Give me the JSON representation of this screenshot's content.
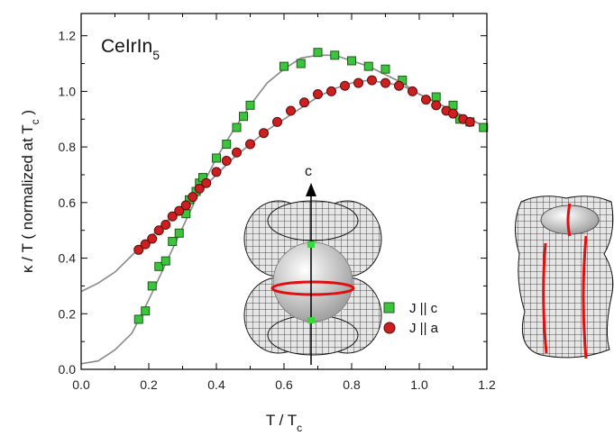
{
  "chart_data": {
    "type": "scatter",
    "title": "CeIrIn",
    "title_subscript": "5",
    "xlabel": "T / T",
    "xlabel_subscript": "c",
    "ylabel": "κ / T ( normalized at T",
    "ylabel_subscript": "c",
    "ylabel_close": " )",
    "xlim": [
      0.0,
      1.2
    ],
    "ylim": [
      0.0,
      1.28
    ],
    "x_ticks": [
      0.0,
      0.2,
      0.4,
      0.6,
      0.8,
      1.0,
      1.2
    ],
    "x_tick_labels": [
      "0.0",
      "0.2",
      "0.4",
      "0.6",
      "0.8",
      "1.0",
      "1.2"
    ],
    "y_ticks": [
      0.0,
      0.2,
      0.4,
      0.6,
      0.8,
      1.0,
      1.2
    ],
    "y_tick_labels": [
      "0.0",
      "0.2",
      "0.4",
      "0.6",
      "0.8",
      "1.0",
      "1.2"
    ],
    "grid": false,
    "legend_position": "lower-right",
    "series": [
      {
        "name": "J || c",
        "marker": "square",
        "color": "#3cc43c",
        "points": [
          [
            0.17,
            0.18
          ],
          [
            0.19,
            0.21
          ],
          [
            0.21,
            0.3
          ],
          [
            0.23,
            0.37
          ],
          [
            0.25,
            0.39
          ],
          [
            0.27,
            0.46
          ],
          [
            0.29,
            0.49
          ],
          [
            0.31,
            0.56
          ],
          [
            0.32,
            0.61
          ],
          [
            0.34,
            0.64
          ],
          [
            0.35,
            0.67
          ],
          [
            0.36,
            0.69
          ],
          [
            0.4,
            0.76
          ],
          [
            0.43,
            0.81
          ],
          [
            0.46,
            0.87
          ],
          [
            0.48,
            0.91
          ],
          [
            0.5,
            0.95
          ],
          [
            0.6,
            1.09
          ],
          [
            0.65,
            1.1
          ],
          [
            0.7,
            1.14
          ],
          [
            0.75,
            1.13
          ],
          [
            0.8,
            1.11
          ],
          [
            0.85,
            1.09
          ],
          [
            0.9,
            1.08
          ],
          [
            0.95,
            1.04
          ],
          [
            1.05,
            0.98
          ],
          [
            1.1,
            0.95
          ],
          [
            1.12,
            0.9
          ],
          [
            1.15,
            0.89
          ],
          [
            1.19,
            0.87
          ]
        ]
      },
      {
        "name": "J || a",
        "marker": "circle",
        "color": "#cc1f1f",
        "points": [
          [
            0.17,
            0.43
          ],
          [
            0.19,
            0.45
          ],
          [
            0.21,
            0.47
          ],
          [
            0.23,
            0.5
          ],
          [
            0.25,
            0.52
          ],
          [
            0.27,
            0.55
          ],
          [
            0.29,
            0.57
          ],
          [
            0.31,
            0.59
          ],
          [
            0.33,
            0.62
          ],
          [
            0.35,
            0.65
          ],
          [
            0.37,
            0.67
          ],
          [
            0.4,
            0.71
          ],
          [
            0.43,
            0.75
          ],
          [
            0.46,
            0.78
          ],
          [
            0.5,
            0.81
          ],
          [
            0.54,
            0.85
          ],
          [
            0.58,
            0.89
          ],
          [
            0.62,
            0.93
          ],
          [
            0.66,
            0.96
          ],
          [
            0.7,
            0.99
          ],
          [
            0.74,
            1.0
          ],
          [
            0.78,
            1.02
          ],
          [
            0.82,
            1.03
          ],
          [
            0.86,
            1.04
          ],
          [
            0.9,
            1.03
          ],
          [
            0.94,
            1.02
          ],
          [
            0.98,
            1.0
          ],
          [
            1.02,
            0.97
          ],
          [
            1.05,
            0.95
          ],
          [
            1.08,
            0.93
          ],
          [
            1.1,
            0.92
          ],
          [
            1.13,
            0.9
          ],
          [
            1.15,
            0.89
          ]
        ]
      }
    ],
    "fit_curves": [
      {
        "for": "J || c",
        "points": [
          [
            0.0,
            0.02
          ],
          [
            0.05,
            0.03
          ],
          [
            0.1,
            0.07
          ],
          [
            0.15,
            0.13
          ],
          [
            0.2,
            0.25
          ],
          [
            0.25,
            0.38
          ],
          [
            0.3,
            0.51
          ],
          [
            0.35,
            0.64
          ],
          [
            0.4,
            0.76
          ],
          [
            0.45,
            0.86
          ],
          [
            0.5,
            0.95
          ],
          [
            0.55,
            1.03
          ],
          [
            0.6,
            1.08
          ],
          [
            0.65,
            1.12
          ],
          [
            0.7,
            1.13
          ],
          [
            0.75,
            1.13
          ],
          [
            0.8,
            1.11
          ],
          [
            0.85,
            1.09
          ],
          [
            0.9,
            1.06
          ],
          [
            0.95,
            1.03
          ],
          [
            1.0,
            0.99
          ],
          [
            1.05,
            0.96
          ],
          [
            1.1,
            0.93
          ],
          [
            1.15,
            0.9
          ],
          [
            1.2,
            0.87
          ]
        ]
      },
      {
        "for": "J || a",
        "points": [
          [
            0.0,
            0.28
          ],
          [
            0.05,
            0.31
          ],
          [
            0.1,
            0.35
          ],
          [
            0.15,
            0.41
          ],
          [
            0.2,
            0.47
          ],
          [
            0.25,
            0.53
          ],
          [
            0.3,
            0.58
          ],
          [
            0.35,
            0.64
          ],
          [
            0.4,
            0.7
          ],
          [
            0.45,
            0.76
          ],
          [
            0.5,
            0.81
          ],
          [
            0.55,
            0.86
          ],
          [
            0.6,
            0.9
          ],
          [
            0.65,
            0.94
          ],
          [
            0.7,
            0.98
          ],
          [
            0.75,
            1.01
          ],
          [
            0.8,
            1.03
          ],
          [
            0.85,
            1.04
          ],
          [
            0.9,
            1.03
          ],
          [
            0.95,
            1.02
          ],
          [
            1.0,
            0.99
          ],
          [
            1.05,
            0.96
          ],
          [
            1.1,
            0.93
          ],
          [
            1.15,
            0.9
          ],
          [
            1.2,
            0.87
          ]
        ]
      }
    ],
    "inset_axis_label": "c"
  }
}
